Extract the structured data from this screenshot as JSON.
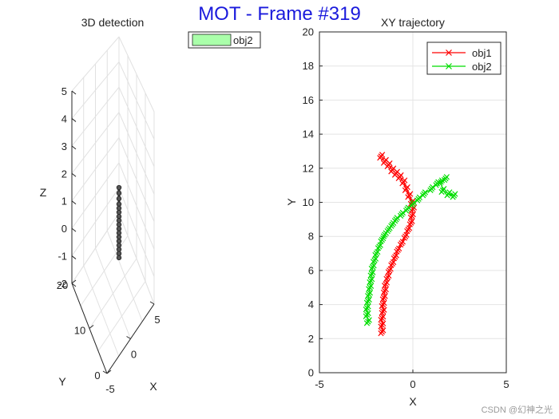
{
  "figure": {
    "suptitle": "MOT - Frame #319",
    "watermark": "CSDN @幻神之光"
  },
  "chart_data": [
    {
      "type": "scatter3d",
      "title": "3D detection",
      "xlabel": "X",
      "ylabel": "Y",
      "zlabel": "Z",
      "xlim": [
        -5,
        5
      ],
      "ylim": [
        0,
        20
      ],
      "zlim": [
        -2,
        5
      ],
      "xticks": [
        "-5",
        "0",
        "5"
      ],
      "yticks": [
        "0",
        "10",
        "20"
      ],
      "zticks": [
        "-2",
        "-1",
        "0",
        "1",
        "2",
        "3",
        "4",
        "5"
      ],
      "grid": true,
      "legend": {
        "position": "top-right",
        "entries": [
          {
            "label": "obj2",
            "color": "#aaffaa"
          }
        ]
      },
      "series": [
        {
          "name": "obj2",
          "color": "#333333",
          "points": [
            {
              "x": 2.2,
              "y": 10.4,
              "z": 1.6
            },
            {
              "x": 2.2,
              "y": 10.4,
              "z": 1.4
            },
            {
              "x": 2.2,
              "y": 10.4,
              "z": 1.2
            },
            {
              "x": 2.2,
              "y": 10.4,
              "z": 1.0
            },
            {
              "x": 2.2,
              "y": 10.4,
              "z": 0.85
            },
            {
              "x": 2.2,
              "y": 10.4,
              "z": 0.7
            },
            {
              "x": 2.2,
              "y": 10.4,
              "z": 0.55
            },
            {
              "x": 2.2,
              "y": 10.4,
              "z": 0.4
            },
            {
              "x": 2.2,
              "y": 10.4,
              "z": 0.25
            },
            {
              "x": 2.2,
              "y": 10.4,
              "z": 0.1
            },
            {
              "x": 2.2,
              "y": 10.4,
              "z": -0.05
            },
            {
              "x": 2.2,
              "y": 10.4,
              "z": -0.2
            },
            {
              "x": 2.2,
              "y": 10.4,
              "z": -0.35
            },
            {
              "x": 2.2,
              "y": 10.4,
              "z": -0.5
            },
            {
              "x": 2.2,
              "y": 10.4,
              "z": -0.65
            },
            {
              "x": 2.2,
              "y": 10.4,
              "z": -0.8
            },
            {
              "x": 2.2,
              "y": 10.4,
              "z": -0.95
            }
          ]
        }
      ]
    },
    {
      "type": "line",
      "title": "XY trajectory",
      "xlabel": "X",
      "ylabel": "Y",
      "xlim": [
        -5,
        5
      ],
      "ylim": [
        0,
        20
      ],
      "xticks": [
        "-5",
        "0",
        "5"
      ],
      "yticks": [
        "0",
        "2",
        "4",
        "6",
        "8",
        "10",
        "12",
        "14",
        "16",
        "18",
        "20"
      ],
      "grid": true,
      "legend": {
        "position": "top-right"
      },
      "series": [
        {
          "name": "obj1",
          "color": "#ff0000",
          "points": [
            [
              -1.7,
              12.7
            ],
            [
              -1.5,
              12.4
            ],
            [
              -1.3,
              12.2
            ],
            [
              -1.1,
              11.9
            ],
            [
              -0.9,
              11.7
            ],
            [
              -0.7,
              11.5
            ],
            [
              -0.5,
              11.2
            ],
            [
              -0.35,
              10.8
            ],
            [
              -0.2,
              10.4
            ],
            [
              -0.05,
              10.0
            ],
            [
              0.0,
              9.6
            ],
            [
              -0.05,
              9.2
            ],
            [
              -0.1,
              8.8
            ],
            [
              -0.25,
              8.4
            ],
            [
              -0.4,
              8.0
            ],
            [
              -0.6,
              7.6
            ],
            [
              -0.8,
              7.2
            ],
            [
              -0.95,
              6.8
            ],
            [
              -1.1,
              6.4
            ],
            [
              -1.25,
              6.0
            ],
            [
              -1.35,
              5.6
            ],
            [
              -1.45,
              5.2
            ],
            [
              -1.5,
              4.8
            ],
            [
              -1.55,
              4.4
            ],
            [
              -1.6,
              4.0
            ],
            [
              -1.6,
              3.6
            ],
            [
              -1.65,
              3.2
            ],
            [
              -1.65,
              2.8
            ],
            [
              -1.65,
              2.4
            ]
          ]
        },
        {
          "name": "obj2",
          "color": "#00dd00",
          "points": [
            [
              2.2,
              10.4
            ],
            [
              1.9,
              10.5
            ],
            [
              1.6,
              10.7
            ],
            [
              1.5,
              11.2
            ],
            [
              1.75,
              11.4
            ],
            [
              1.3,
              11.1
            ],
            [
              1.0,
              10.8
            ],
            [
              0.6,
              10.5
            ],
            [
              0.3,
              10.2
            ],
            [
              0.0,
              9.9
            ],
            [
              -0.3,
              9.6
            ],
            [
              -0.6,
              9.3
            ],
            [
              -0.9,
              9.0
            ],
            [
              -1.1,
              8.7
            ],
            [
              -1.3,
              8.4
            ],
            [
              -1.5,
              8.1
            ],
            [
              -1.65,
              7.8
            ],
            [
              -1.8,
              7.4
            ],
            [
              -1.95,
              7.0
            ],
            [
              -2.05,
              6.6
            ],
            [
              -2.15,
              6.2
            ],
            [
              -2.2,
              5.8
            ],
            [
              -2.25,
              5.4
            ],
            [
              -2.3,
              5.0
            ],
            [
              -2.35,
              4.6
            ],
            [
              -2.4,
              4.2
            ],
            [
              -2.45,
              3.8
            ],
            [
              -2.45,
              3.4
            ],
            [
              -2.4,
              3.0
            ]
          ]
        }
      ]
    }
  ]
}
